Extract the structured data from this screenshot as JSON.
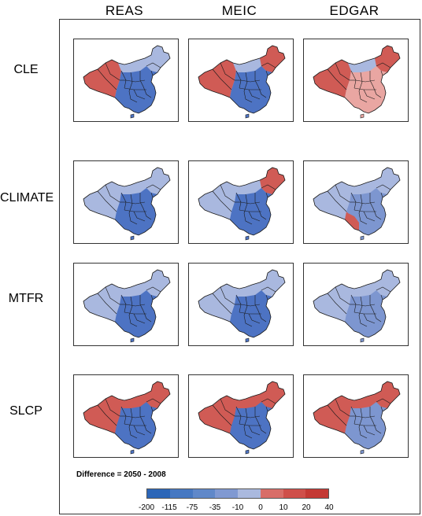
{
  "columns": [
    "REAS",
    "MEIC",
    "EDGAR"
  ],
  "rows": [
    "CLE",
    "CLIMATE",
    "MTFR",
    "SLCP"
  ],
  "difference_label": "Difference = 2050 - 2008",
  "legend": {
    "colors": [
      "#2c66b8",
      "#4678c2",
      "#6088c9",
      "#8099d2",
      "#aab9de",
      "#d86d68",
      "#cf4f4a",
      "#c43934"
    ],
    "ticks": [
      "-200",
      "-115",
      "-75",
      "-35",
      "-10",
      "0",
      "10",
      "20",
      "40"
    ]
  },
  "palette": {
    "light_blue": "#a9b8df",
    "mid_blue": "#7d96d0",
    "dark_blue": "#4d73c3",
    "red": "#d05b55",
    "light_red": "#e9a6a2",
    "border": "#1a1a1a"
  },
  "panels": [
    {
      "row": "CLE",
      "col": "REAS",
      "west": "red",
      "ne": "light_blue",
      "east": "dark_blue",
      "north": "light_blue"
    },
    {
      "row": "CLE",
      "col": "MEIC",
      "west": "red",
      "ne": "red",
      "east": "dark_blue",
      "north": "light_blue"
    },
    {
      "row": "CLE",
      "col": "EDGAR",
      "west": "red",
      "ne": "red",
      "east": "light_red",
      "north": "light_blue"
    },
    {
      "row": "CLIMATE",
      "col": "REAS",
      "west": "light_blue",
      "ne": "light_blue",
      "east": "dark_blue",
      "north": "light_blue"
    },
    {
      "row": "CLIMATE",
      "col": "MEIC",
      "west": "light_blue",
      "ne": "red",
      "east": "dark_blue",
      "north": "light_blue"
    },
    {
      "row": "CLIMATE",
      "col": "EDGAR",
      "west": "light_blue",
      "ne": "light_blue",
      "east": "mid_blue",
      "north": "light_blue",
      "south": "red"
    },
    {
      "row": "MTFR",
      "col": "REAS",
      "west": "light_blue",
      "ne": "light_blue",
      "east": "dark_blue",
      "north": "light_blue"
    },
    {
      "row": "MTFR",
      "col": "MEIC",
      "west": "light_blue",
      "ne": "light_blue",
      "east": "dark_blue",
      "north": "light_blue"
    },
    {
      "row": "MTFR",
      "col": "EDGAR",
      "west": "light_blue",
      "ne": "light_blue",
      "east": "mid_blue",
      "north": "light_blue"
    },
    {
      "row": "SLCP",
      "col": "REAS",
      "west": "red",
      "ne": "red",
      "east": "dark_blue",
      "north": "red"
    },
    {
      "row": "SLCP",
      "col": "MEIC",
      "west": "red",
      "ne": "red",
      "east": "dark_blue",
      "north": "red"
    },
    {
      "row": "SLCP",
      "col": "EDGAR",
      "west": "red",
      "ne": "red",
      "east": "mid_blue",
      "north": "red"
    }
  ]
}
